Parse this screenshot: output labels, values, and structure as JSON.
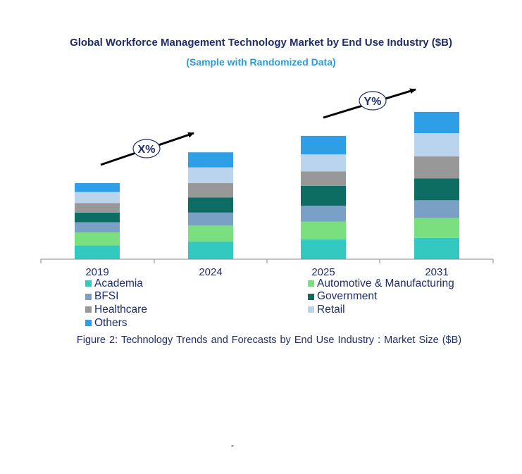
{
  "title": "Global Workforce Management Technology Market by End Use Industry ($B)",
  "subtitle": "(Sample with Randomized Data)",
  "caption": "Figure 2: Technology  Trends  and Forecasts by End Use Industry   : Market Size ($B)",
  "footnote": "-",
  "colors": {
    "Academia": "#33c8c0",
    "Automotive & Manufacturing": "#7adf7e",
    "BFSI": "#7aa1c5",
    "Government": "#0d6d63",
    "Healthcare": "#989898",
    "Retail": "#b9d4ec",
    "Others": "#2e9ee6",
    "title": "#1f2d6b",
    "subtitle": "#2e9bd6"
  },
  "chart_data": {
    "type": "bar",
    "stacked": true,
    "categories": [
      "2019",
      "2024",
      "2025",
      "2031"
    ],
    "series": [
      {
        "name": "Academia",
        "values": [
          20,
          26,
          29,
          31
        ]
      },
      {
        "name": "Automotive & Manufacturing",
        "values": [
          19,
          23,
          26,
          29
        ]
      },
      {
        "name": "BFSI",
        "values": [
          15,
          19,
          23,
          26
        ]
      },
      {
        "name": "Government",
        "values": [
          14,
          22,
          29,
          32
        ]
      },
      {
        "name": "Healthcare",
        "values": [
          14,
          21,
          21,
          32
        ]
      },
      {
        "name": "Retail",
        "values": [
          16,
          23,
          25,
          34
        ]
      },
      {
        "name": "Others",
        "values": [
          13,
          22,
          27,
          31
        ]
      }
    ],
    "annotations": [
      {
        "label": "X%",
        "from": "2019",
        "to": "2024"
      },
      {
        "label": "Y%",
        "from": "2025",
        "to": "2031"
      }
    ],
    "legend_position": "bottom",
    "grid": false,
    "ylim": [
      0,
      220
    ]
  }
}
